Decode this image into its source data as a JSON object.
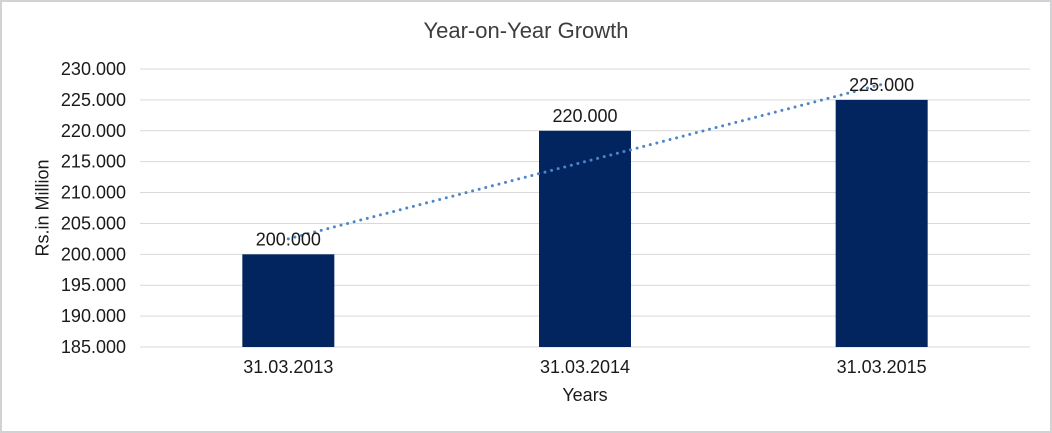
{
  "frame": {
    "background": "#ffffff",
    "border_color": "#d2d2d4"
  },
  "chart_data": {
    "type": "bar",
    "title": "Year-on-Year Growth",
    "xlabel": "Years",
    "ylabel": "Rs.in Million",
    "categories": [
      "31.03.2013",
      "31.03.2014",
      "31.03.2015"
    ],
    "values": [
      200000,
      220000,
      225000
    ],
    "data_labels": [
      "200.000",
      "220.000",
      "225.000"
    ],
    "ytick_labels": [
      "230.000",
      "225.000",
      "220.000",
      "215.000",
      "210.000",
      "205.000",
      "200.000",
      "195.000",
      "190.000",
      "185.000"
    ],
    "ylim": [
      185000,
      230000
    ],
    "ytick_step": 5000,
    "grid": true,
    "legend": "none",
    "bar_color": "#02245f",
    "gridline_color": "#d9d9d9",
    "axis_line_color": "#d9d9d9",
    "label_color": "#1a1a1a",
    "title_color": "#3d3d3d",
    "trendline": {
      "type": "linear",
      "style": "dotted",
      "color": "#4e86c8",
      "fitted_values": [
        202500,
        215000,
        227500
      ]
    }
  }
}
